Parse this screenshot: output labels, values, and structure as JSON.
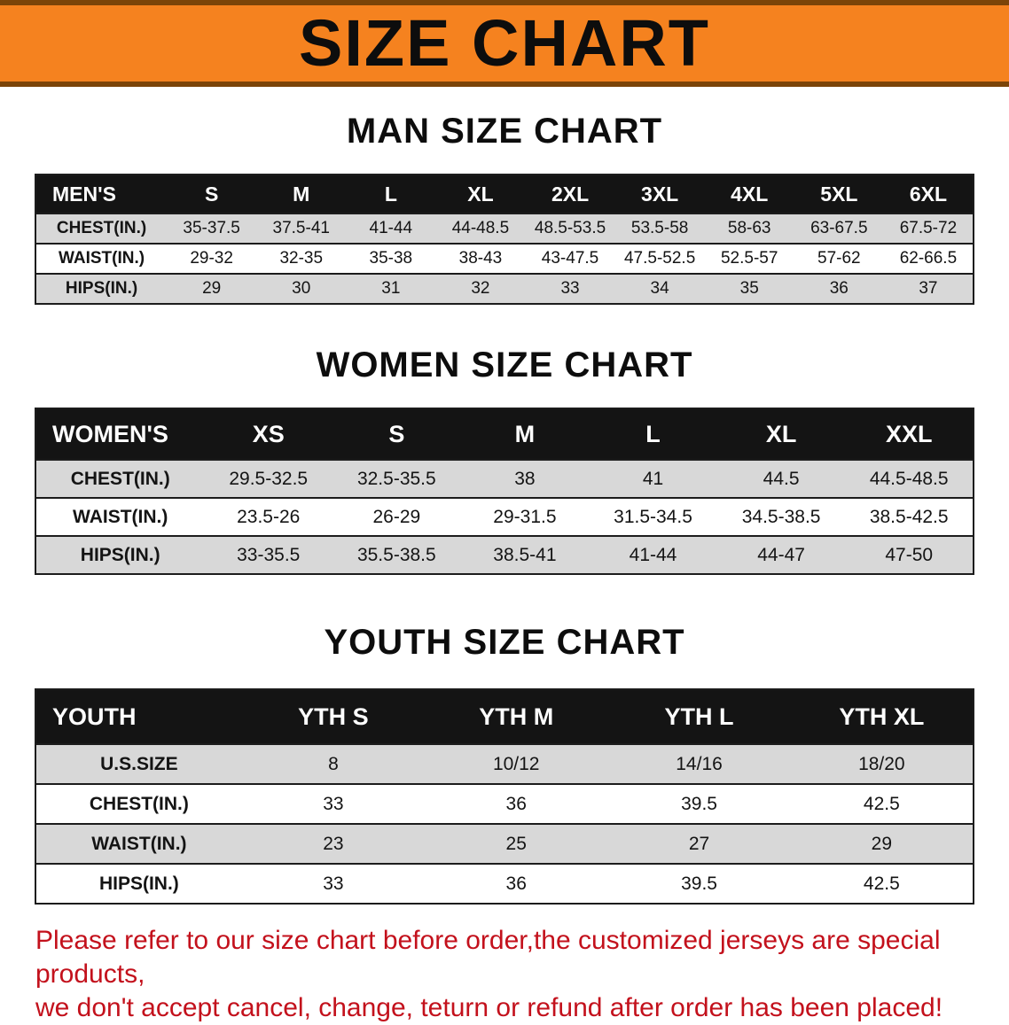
{
  "colors": {
    "banner_orange": "#f5821f",
    "banner_edge": "#7b4408",
    "header_black": "#141414",
    "row_gray": "#d8d8d8",
    "note_red": "#c3111c",
    "text_black": "#111111"
  },
  "banner_title": "SIZE CHART",
  "men": {
    "heading": "MAN SIZE CHART",
    "table": {
      "header": [
        "MEN'S",
        "S",
        "M",
        "L",
        "XL",
        "2XL",
        "3XL",
        "4XL",
        "5XL",
        "6XL"
      ],
      "rows": [
        [
          "CHEST(IN.)",
          "35-37.5",
          "37.5-41",
          "41-44",
          "44-48.5",
          "48.5-53.5",
          "53.5-58",
          "58-63",
          "63-67.5",
          "67.5-72"
        ],
        [
          "WAIST(IN.)",
          "29-32",
          "32-35",
          "35-38",
          "38-43",
          "43-47.5",
          "47.5-52.5",
          "52.5-57",
          "57-62",
          "62-66.5"
        ],
        [
          "HIPS(IN.)",
          "29",
          "30",
          "31",
          "32",
          "33",
          "34",
          "35",
          "36",
          "37"
        ]
      ]
    }
  },
  "women": {
    "heading": "WOMEN SIZE CHART",
    "table": {
      "header": [
        "WOMEN'S",
        "XS",
        "S",
        "M",
        "L",
        "XL",
        "XXL"
      ],
      "rows": [
        [
          "CHEST(IN.)",
          "29.5-32.5",
          "32.5-35.5",
          "38",
          "41",
          "44.5",
          "44.5-48.5"
        ],
        [
          "WAIST(IN.)",
          "23.5-26",
          "26-29",
          "29-31.5",
          "31.5-34.5",
          "34.5-38.5",
          "38.5-42.5"
        ],
        [
          "HIPS(IN.)",
          "33-35.5",
          "35.5-38.5",
          "38.5-41",
          "41-44",
          "44-47",
          "47-50"
        ]
      ]
    }
  },
  "youth": {
    "heading": "YOUTH SIZE CHART",
    "table": {
      "header": [
        "YOUTH",
        "YTH S",
        "YTH M",
        "YTH L",
        "YTH XL"
      ],
      "rows": [
        [
          "U.S.SIZE",
          "8",
          "10/12",
          "14/16",
          "18/20"
        ],
        [
          "CHEST(IN.)",
          "33",
          "36",
          "39.5",
          "42.5"
        ],
        [
          "WAIST(IN.)",
          "23",
          "25",
          "27",
          "29"
        ],
        [
          "HIPS(IN.)",
          "33",
          "36",
          "39.5",
          "42.5"
        ]
      ]
    }
  },
  "note": {
    "line1": "Please refer to our size chart before order,the customized jerseys are special products,",
    "line2": "we don't accept cancel, change, teturn or refund after order has been placed!"
  }
}
